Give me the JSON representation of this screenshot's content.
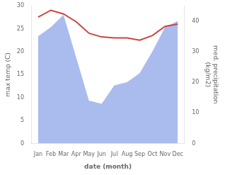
{
  "chart_data": {
    "type": "line",
    "categories": [
      "Jan",
      "Feb",
      "Mar",
      "Apr",
      "May",
      "Jun",
      "Jul",
      "Aug",
      "Sep",
      "Oct",
      "Nov",
      "Dec"
    ],
    "series": [
      {
        "type": "area",
        "axis": "y2",
        "color": "#aabbee",
        "values": [
          35,
          38,
          42,
          28,
          14,
          13,
          19,
          20,
          23,
          30,
          38,
          40
        ]
      },
      {
        "type": "line",
        "axis": "y",
        "color": "#cc4444",
        "values": [
          27.5,
          29.0,
          28.2,
          26.5,
          24.0,
          23.2,
          23.0,
          23.0,
          22.5,
          23.5,
          25.5,
          26.0
        ]
      }
    ],
    "xlabel": "date (month)",
    "ylabel": "max temp (C)",
    "y2label": "med. precipitation\n(kg/m2)",
    "ylim": [
      0,
      30
    ],
    "yticks": [
      0,
      5,
      10,
      15,
      20,
      25,
      30
    ],
    "y2lim": [
      0,
      45
    ],
    "y2ticks": [
      0,
      10,
      20,
      30,
      40
    ],
    "grid": false
  }
}
